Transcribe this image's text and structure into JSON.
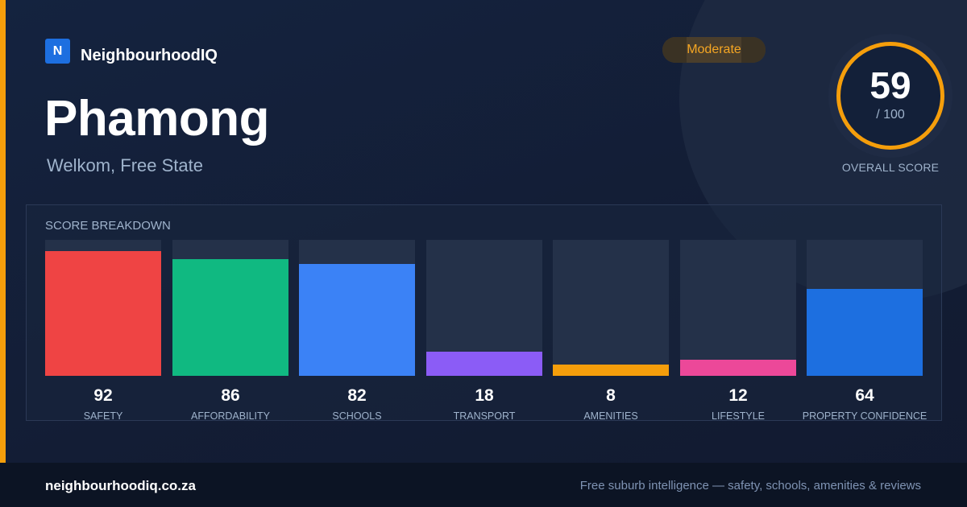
{
  "brand": {
    "logo_letter": "N",
    "name": "NeighbourhoodIQ"
  },
  "place": {
    "name": "Phamong",
    "region": "Welkom, Free State"
  },
  "badge": {
    "label": "Moderate",
    "color": "#f5a623"
  },
  "overall": {
    "score": "59",
    "max": "/ 100",
    "label": "OVERALL SCORE",
    "value": 59,
    "ring_color": "#f59e0b"
  },
  "breakdown": {
    "title": "SCORE BREAKDOWN",
    "items": [
      {
        "label": "SAFETY",
        "value": 92,
        "color": "#ef4444"
      },
      {
        "label": "AFFORDABILITY",
        "value": 86,
        "color": "#10b981"
      },
      {
        "label": "SCHOOLS",
        "value": 82,
        "color": "#3b82f6"
      },
      {
        "label": "TRANSPORT",
        "value": 18,
        "color": "#8b5cf6"
      },
      {
        "label": "AMENITIES",
        "value": 8,
        "color": "#f59e0b"
      },
      {
        "label": "LIFESTYLE",
        "value": 12,
        "color": "#ec4899"
      },
      {
        "label": "PROPERTY CONFIDENCE",
        "value": 64,
        "color": "#1d6fe0"
      }
    ]
  },
  "chart_data": {
    "type": "bar",
    "categories": [
      "SAFETY",
      "AFFORDABILITY",
      "SCHOOLS",
      "TRANSPORT",
      "AMENITIES",
      "LIFESTYLE",
      "PROPERTY CONFIDENCE"
    ],
    "values": [
      92,
      86,
      82,
      18,
      8,
      12,
      64
    ],
    "title": "SCORE BREAKDOWN",
    "ylim": [
      0,
      100
    ]
  },
  "footer": {
    "domain": "neighbourhoodiq.co.za",
    "tagline": "Free suburb intelligence — safety, schools, amenities & reviews"
  }
}
